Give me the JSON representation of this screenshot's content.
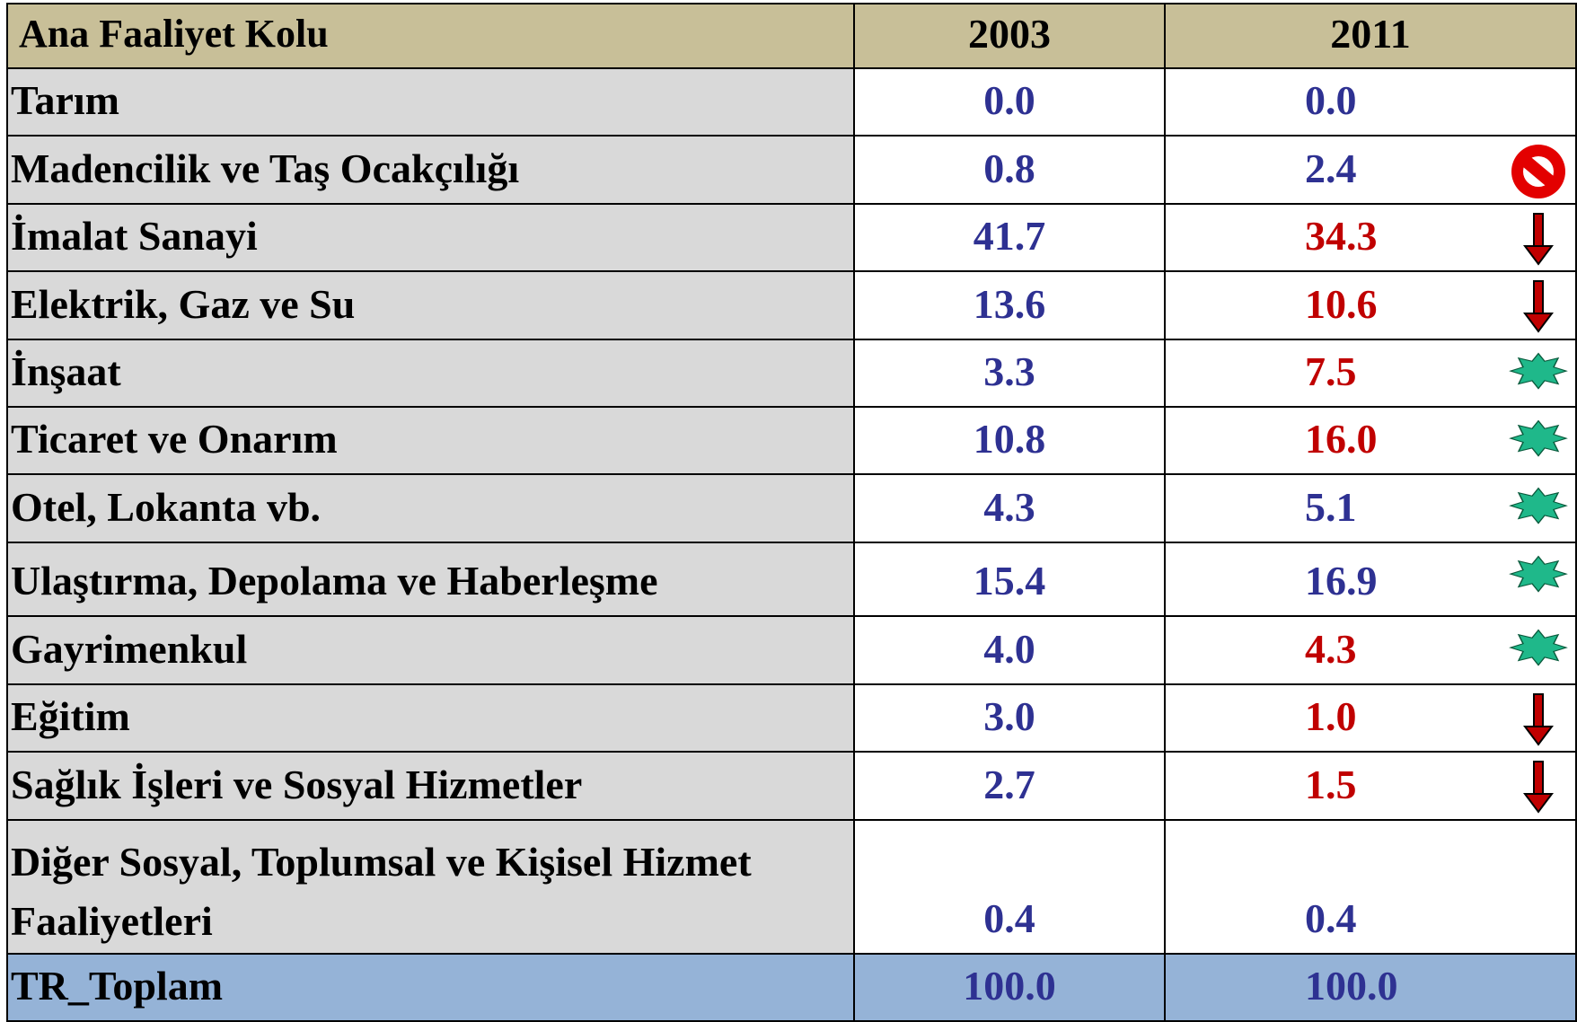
{
  "table": {
    "header": [
      "Ana Faaliyet Kolu",
      "2003",
      "2011"
    ],
    "rows": [
      [
        "Tarım",
        "0.0",
        "0.0"
      ],
      [
        "Madencilik ve Taş Ocakçılığı",
        "0.8",
        "2.4"
      ],
      [
        "İmalat Sanayi",
        "41.7",
        "34.3"
      ],
      [
        "Elektrik, Gaz ve Su",
        "13.6",
        "10.6"
      ],
      [
        "İnşaat",
        "3.3",
        "7.5"
      ],
      [
        "Ticaret ve Onarım",
        "10.8",
        "16.0"
      ],
      [
        "Otel, Lokanta vb.",
        "4.3",
        "5.1"
      ],
      [
        "Ulaştırma, Depolama ve Haberleşme",
        "15.4",
        "16.9"
      ],
      [
        "Gayrimenkul",
        "4.0",
        "4.3"
      ],
      [
        "Eğitim",
        "3.0",
        "1.0"
      ],
      [
        "Sağlık İşleri ve Sosyal Hizmetler",
        "2.7",
        "1.5"
      ],
      [
        "Diğer Sosyal, Toplumsal ve Kişisel Hizmet Faaliyetleri",
        "0.4",
        "0.4"
      ]
    ],
    "total": [
      "TR_Toplam",
      "100.0",
      "100.0"
    ]
  }
}
